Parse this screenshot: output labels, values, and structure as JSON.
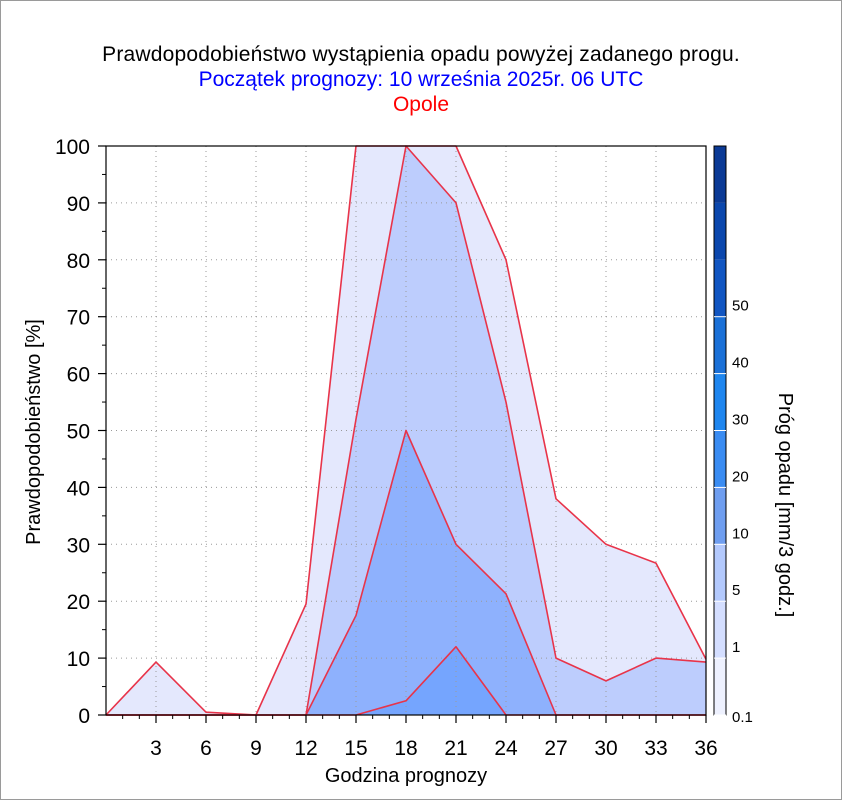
{
  "titles": {
    "main": "Prawdopodobieństwo wystąpienia opadu powyżej zadanego progu.",
    "sub": "Początek prognozy: 10 września 2025r. 06 UTC",
    "location": "Opole"
  },
  "colors": {
    "title_main": "#000000",
    "title_sub": "#0000ff",
    "title_location": "#ff0000",
    "contour_line": "#e8344a",
    "threshold_fills": [
      "#e4e8fd",
      "#bdcdfd",
      "#8eb1fd",
      "#75a5fe"
    ],
    "scale_fills": [
      "#eef1fe",
      "#d4deff",
      "#b3c9fd",
      "#6f9ef0",
      "#3a8cf2",
      "#1e86ef",
      "#1a70d7",
      "#1156c2",
      "#0b47ad",
      "#0b3a95"
    ]
  },
  "chart_data": {
    "type": "area",
    "xlabel": "Godzina prognozy",
    "ylabel": "Prawdopodobieństwo [%]",
    "x": [
      0,
      3,
      6,
      9,
      12,
      15,
      18,
      21,
      24,
      27,
      30,
      33,
      36
    ],
    "xticks": [
      3,
      6,
      9,
      12,
      15,
      18,
      21,
      24,
      27,
      30,
      33,
      36
    ],
    "yticks": [
      0,
      10,
      20,
      30,
      40,
      50,
      60,
      70,
      80,
      90,
      100
    ],
    "xlim": [
      0,
      36
    ],
    "ylim": [
      0,
      100
    ],
    "grid": true,
    "series": [
      {
        "threshold": 0.1,
        "values": [
          0,
          9.3,
          0.5,
          0,
          19.5,
          100,
          100,
          100,
          80,
          38,
          30,
          26.7,
          9.8
        ]
      },
      {
        "threshold": 1,
        "values": [
          0,
          0,
          0,
          0,
          0,
          52,
          100,
          90,
          55,
          10,
          6,
          10,
          9.3
        ]
      },
      {
        "threshold": 5,
        "values": [
          0,
          0,
          0,
          0,
          0,
          17.5,
          50,
          30,
          21.3,
          0,
          0,
          0,
          0
        ]
      },
      {
        "threshold": 10,
        "values": [
          0,
          0,
          0,
          0,
          0,
          0,
          2.5,
          12,
          0,
          0,
          0,
          0,
          0
        ]
      }
    ],
    "colorbar": {
      "label": "Próg opadu [mm/3 godz.]",
      "tick_labels": [
        "0.1",
        "1",
        "5",
        "10",
        "20",
        "30",
        "40",
        "50"
      ]
    }
  }
}
